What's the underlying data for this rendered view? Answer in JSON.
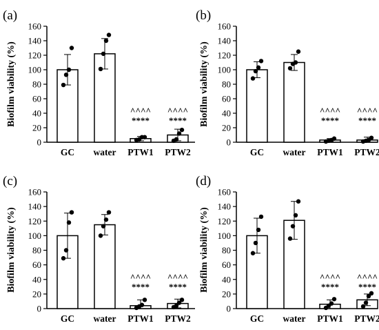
{
  "chart_data": [
    {
      "type": "bar",
      "panel_label": "(a)",
      "ylabel": "Biofilm viability (%)",
      "ylim": [
        0,
        160
      ],
      "yticks": [
        0,
        20,
        40,
        60,
        80,
        100,
        120,
        140,
        160
      ],
      "categories": [
        "GC",
        "water",
        "PTW1",
        "PTW2"
      ],
      "values": [
        100,
        122,
        5,
        10
      ],
      "error": [
        21,
        21,
        3,
        8
      ],
      "points": [
        [
          79,
          93,
          100,
          130
        ],
        [
          101,
          122,
          140,
          148
        ],
        [
          3,
          4,
          7,
          7
        ],
        [
          2,
          4,
          12,
          17
        ]
      ],
      "annotations": [
        {
          "category": "PTW1",
          "lines": [
            "^^^^",
            "****"
          ]
        },
        {
          "category": "PTW2",
          "lines": [
            "^^^^",
            "****"
          ]
        }
      ]
    },
    {
      "type": "bar",
      "panel_label": "(b)",
      "ylabel": "Biofilm viability (%)",
      "ylim": [
        0,
        160
      ],
      "yticks": [
        0,
        20,
        40,
        60,
        80,
        100,
        120,
        140,
        160
      ],
      "categories": [
        "GC",
        "water",
        "PTW1",
        "PTW2"
      ],
      "values": [
        100,
        110,
        3,
        3
      ],
      "error": [
        11,
        11,
        2,
        4
      ],
      "points": [
        [
          88,
          98,
          103,
          112
        ],
        [
          102,
          108,
          110,
          125
        ],
        [
          1,
          2,
          3,
          5
        ],
        [
          1,
          2,
          3,
          6
        ]
      ],
      "annotations": [
        {
          "category": "PTW1",
          "lines": [
            "^^^^",
            "****"
          ]
        },
        {
          "category": "PTW2",
          "lines": [
            "^^^^",
            "****"
          ]
        }
      ]
    },
    {
      "type": "bar",
      "panel_label": "(c)",
      "ylabel": "Biofilm viability (%)",
      "ylim": [
        0,
        160
      ],
      "yticks": [
        0,
        20,
        40,
        60,
        80,
        100,
        120,
        140,
        160
      ],
      "categories": [
        "GC",
        "water",
        "PTW1",
        "PTW2"
      ],
      "values": [
        100,
        115,
        4,
        7
      ],
      "error": [
        31,
        14,
        8,
        6
      ],
      "points": [
        [
          69,
          80,
          118,
          132
        ],
        [
          100,
          113,
          122,
          132
        ],
        [
          1,
          3,
          5,
          12
        ],
        [
          2,
          4,
          8,
          12
        ]
      ],
      "annotations": [
        {
          "category": "PTW1",
          "lines": [
            "^^^^",
            "****"
          ]
        },
        {
          "category": "PTW2",
          "lines": [
            "^^^^",
            "****"
          ]
        }
      ]
    },
    {
      "type": "bar",
      "panel_label": "(d)",
      "ylabel": "Biofilm viability (%)",
      "ylim": [
        0,
        160
      ],
      "yticks": [
        0,
        20,
        40,
        60,
        80,
        100,
        120,
        140,
        160
      ],
      "categories": [
        "GC",
        "water",
        "PTW1",
        "PTW2"
      ],
      "values": [
        100,
        121,
        6,
        12
      ],
      "error": [
        24,
        26,
        6,
        8
      ],
      "points": [
        [
          76,
          90,
          108,
          126
        ],
        [
          96,
          113,
          128,
          147
        ],
        [
          1,
          4,
          7,
          13
        ],
        [
          3,
          8,
          17,
          21
        ]
      ],
      "annotations": [
        {
          "category": "PTW1",
          "lines": [
            "^^^^",
            "****"
          ]
        },
        {
          "category": "PTW2",
          "lines": [
            "^^^^",
            "****"
          ]
        }
      ]
    }
  ]
}
